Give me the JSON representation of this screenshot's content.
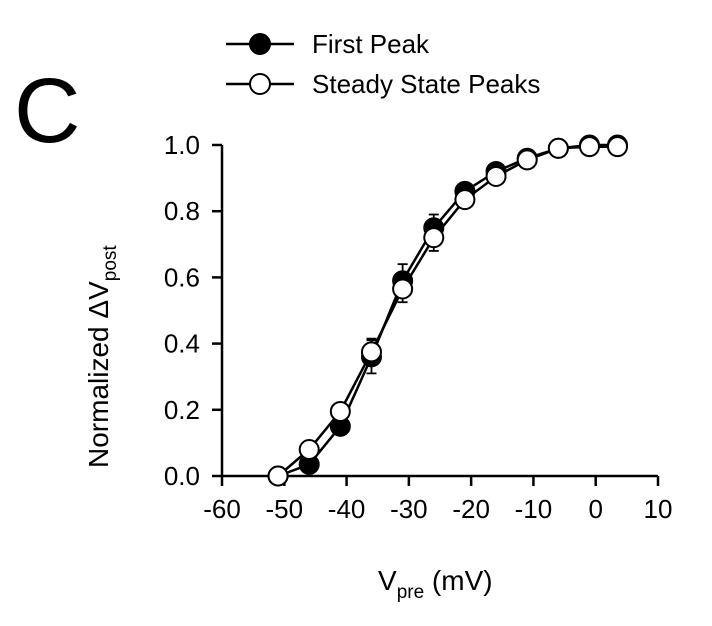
{
  "panel_label": "C",
  "chart_data": {
    "type": "line",
    "xlabel": {
      "main": "V",
      "sub": "pre",
      "rest": " (mV)"
    },
    "ylabel": {
      "main": "Normalized ΔV",
      "sub": "post"
    },
    "xlim": [
      -60,
      10
    ],
    "ylim": [
      0.0,
      1.0
    ],
    "xticks": [
      -60,
      -50,
      -40,
      -30,
      -20,
      -10,
      0,
      10
    ],
    "xtick_labels": [
      "-60",
      "-50",
      "-40",
      "-30",
      "-20",
      "-10",
      "0",
      "10"
    ],
    "yticks": [
      0.0,
      0.2,
      0.4,
      0.6,
      0.8,
      1.0
    ],
    "ytick_labels": [
      "0.0",
      "0.2",
      "0.4",
      "0.6",
      "0.8",
      "1.0"
    ],
    "legend_position": "top",
    "series": [
      {
        "name": "First Peak",
        "marker": "filled-circle",
        "color": "#000000",
        "x": [
          -51,
          -46,
          -41,
          -36,
          -31,
          -26,
          -21,
          -16,
          -11,
          -6,
          -1,
          3.5
        ],
        "y": [
          0.0,
          0.035,
          0.15,
          0.36,
          0.59,
          0.75,
          0.86,
          0.92,
          0.96,
          0.99,
          1.0,
          1.0
        ],
        "err": [
          0,
          0.01,
          0.02,
          0.05,
          0.05,
          0.04,
          0.02,
          0.015,
          0.01,
          0,
          0,
          0
        ]
      },
      {
        "name": "Steady State Peaks",
        "marker": "open-circle",
        "color": "#000000",
        "x": [
          -51,
          -46,
          -41,
          -36,
          -31,
          -26,
          -21,
          -16,
          -11,
          -6,
          -1,
          3.5
        ],
        "y": [
          0.0,
          0.08,
          0.195,
          0.375,
          0.565,
          0.72,
          0.835,
          0.905,
          0.955,
          0.99,
          0.995,
          0.995
        ],
        "err": [
          0,
          0.01,
          0.02,
          0.04,
          0.04,
          0.04,
          0.02,
          0.015,
          0.01,
          0,
          0,
          0
        ]
      }
    ]
  }
}
